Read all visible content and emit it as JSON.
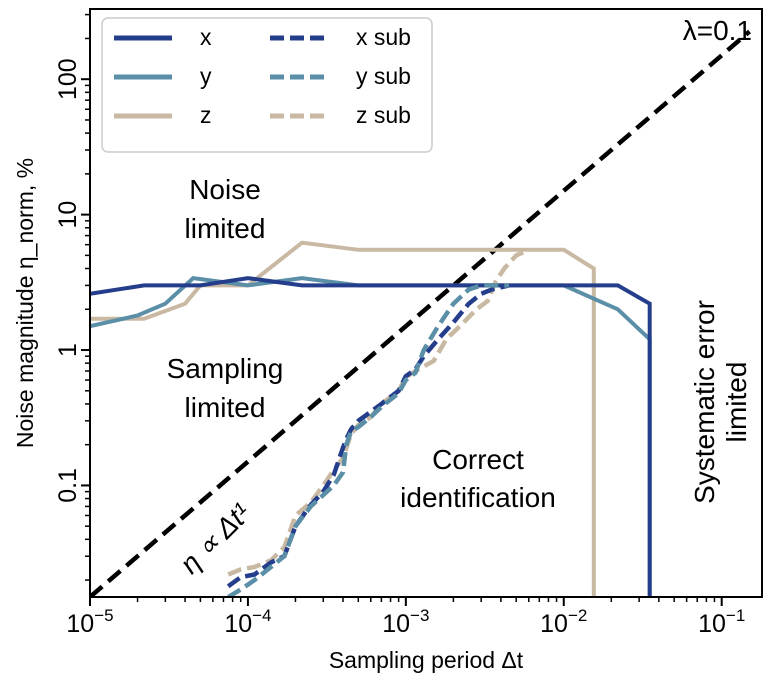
{
  "chart_data": {
    "type": "line",
    "xlabel": "Sampling period Δt",
    "ylabel": "Noise magnitude η_norm, %",
    "x_scale": "log",
    "y_scale": "log",
    "xlim": [
      1e-05,
      0.18
    ],
    "ylim": [
      0.015,
      330
    ],
    "x_ticks": [
      {
        "value": 1e-05,
        "label": "10−5"
      },
      {
        "value": 0.0001,
        "label": "10−4"
      },
      {
        "value": 0.001,
        "label": "10−3"
      },
      {
        "value": 0.01,
        "label": "10−2"
      },
      {
        "value": 0.1,
        "label": "10−1"
      }
    ],
    "y_ticks": [
      {
        "value": 0.1,
        "label": "0.1"
      },
      {
        "value": 1,
        "label": "1"
      },
      {
        "value": 10,
        "label": "10"
      },
      {
        "value": 100,
        "label": "100"
      }
    ],
    "grid": false,
    "legend_position": "top-left",
    "series": [
      {
        "name": "x",
        "color": "#243e8c",
        "style": "solid",
        "x": [
          1e-05,
          2.2e-05,
          5e-05,
          0.0001,
          0.00022,
          0.0005,
          0.001,
          0.0022,
          0.005,
          0.01,
          0.022,
          0.035,
          0.035
        ],
        "y": [
          2.6,
          3.0,
          3.0,
          3.4,
          3.0,
          3.0,
          3.0,
          3.0,
          3.0,
          3.0,
          3.0,
          2.2,
          0.015
        ]
      },
      {
        "name": "y",
        "color": "#5b8fa8",
        "style": "solid",
        "x": [
          1e-05,
          2e-05,
          3e-05,
          4.5e-05,
          0.0001,
          0.00022,
          0.0005,
          0.001,
          0.0022,
          0.005,
          0.01,
          0.022,
          0.035,
          0.035
        ],
        "y": [
          1.5,
          1.8,
          2.2,
          3.4,
          3.0,
          3.4,
          3.0,
          3.0,
          3.0,
          3.0,
          3.0,
          2.0,
          1.2,
          0.015
        ]
      },
      {
        "name": "z",
        "color": "#c9b8a2",
        "style": "solid",
        "x": [
          1e-05,
          2.2e-05,
          4e-05,
          5e-05,
          0.0001,
          0.00022,
          0.0005,
          0.001,
          0.0022,
          0.005,
          0.01,
          0.0155,
          0.0155
        ],
        "y": [
          1.7,
          1.7,
          2.2,
          3.0,
          3.0,
          6.2,
          5.5,
          5.5,
          5.5,
          5.5,
          5.5,
          4.0,
          0.015
        ]
      },
      {
        "name": "x sub",
        "color": "#243e8c",
        "style": "dashed",
        "x": [
          7.5e-05,
          9e-05,
          0.00011,
          0.00014,
          0.00017,
          0.0002,
          0.00025,
          0.0003,
          0.00035,
          0.0004,
          0.00042,
          0.00045,
          0.0005,
          0.0006,
          0.0007,
          0.0009,
          0.001,
          0.00115,
          0.0013,
          0.0016,
          0.002,
          0.0025,
          0.003,
          0.0035,
          0.0045
        ],
        "y": [
          0.018,
          0.021,
          0.022,
          0.027,
          0.03,
          0.05,
          0.072,
          0.09,
          0.12,
          0.19,
          0.22,
          0.26,
          0.3,
          0.35,
          0.4,
          0.5,
          0.64,
          0.72,
          0.9,
          1.2,
          1.6,
          2.2,
          2.6,
          2.8,
          3.0
        ]
      },
      {
        "name": "y sub",
        "color": "#5b8fa8",
        "style": "dashed",
        "x": [
          7.5e-05,
          9e-05,
          0.00011,
          0.00014,
          0.00017,
          0.0002,
          0.00025,
          0.0003,
          0.00035,
          0.0004,
          0.00042,
          0.00045,
          0.0005,
          0.0006,
          0.0007,
          0.0009,
          0.001,
          0.00115,
          0.0013,
          0.0016,
          0.002,
          0.0025,
          0.003,
          0.0035,
          0.0045
        ],
        "y": [
          0.015,
          0.017,
          0.02,
          0.025,
          0.03,
          0.05,
          0.07,
          0.085,
          0.1,
          0.125,
          0.2,
          0.25,
          0.27,
          0.32,
          0.38,
          0.48,
          0.6,
          0.68,
          1.0,
          1.5,
          2.2,
          2.8,
          3.0,
          3.0,
          3.0
        ]
      },
      {
        "name": "z sub",
        "color": "#c9b8a2",
        "style": "dashed",
        "x": [
          7.5e-05,
          9e-05,
          0.00011,
          0.00014,
          0.00017,
          0.0002,
          0.00025,
          0.0003,
          0.00035,
          0.0004,
          0.00045,
          0.0005,
          0.0006,
          0.0007,
          0.0009,
          0.001,
          0.0012,
          0.0015,
          0.0018,
          0.0022,
          0.0028,
          0.0033,
          0.0037,
          0.0042,
          0.005,
          0.006
        ],
        "y": [
          0.022,
          0.024,
          0.025,
          0.028,
          0.035,
          0.06,
          0.075,
          0.1,
          0.13,
          0.16,
          0.24,
          0.28,
          0.32,
          0.4,
          0.5,
          0.63,
          0.72,
          0.83,
          1.2,
          1.5,
          2.0,
          2.3,
          3.2,
          4.0,
          5.0,
          5.5
        ]
      },
      {
        "name": "",
        "color": "#000000",
        "style": "dashed-thick",
        "x": [
          1e-05,
          0.15
        ],
        "y": [
          0.015,
          225
        ]
      }
    ],
    "annotations": [
      {
        "text": "λ=0.1",
        "role": "lambda"
      },
      {
        "text": "Noise",
        "role": "noise-1"
      },
      {
        "text": "limited",
        "role": "noise-2"
      },
      {
        "text": "Sampling",
        "role": "sampling-1"
      },
      {
        "text": "limited",
        "role": "sampling-2"
      },
      {
        "text": "Correct",
        "role": "correct-1"
      },
      {
        "text": "identification",
        "role": "correct-2"
      },
      {
        "text": "Systematic error",
        "role": "systematic-1"
      },
      {
        "text": "limited",
        "role": "systematic-2"
      },
      {
        "text": "η ∝ Δt¹",
        "role": "slope"
      }
    ]
  }
}
